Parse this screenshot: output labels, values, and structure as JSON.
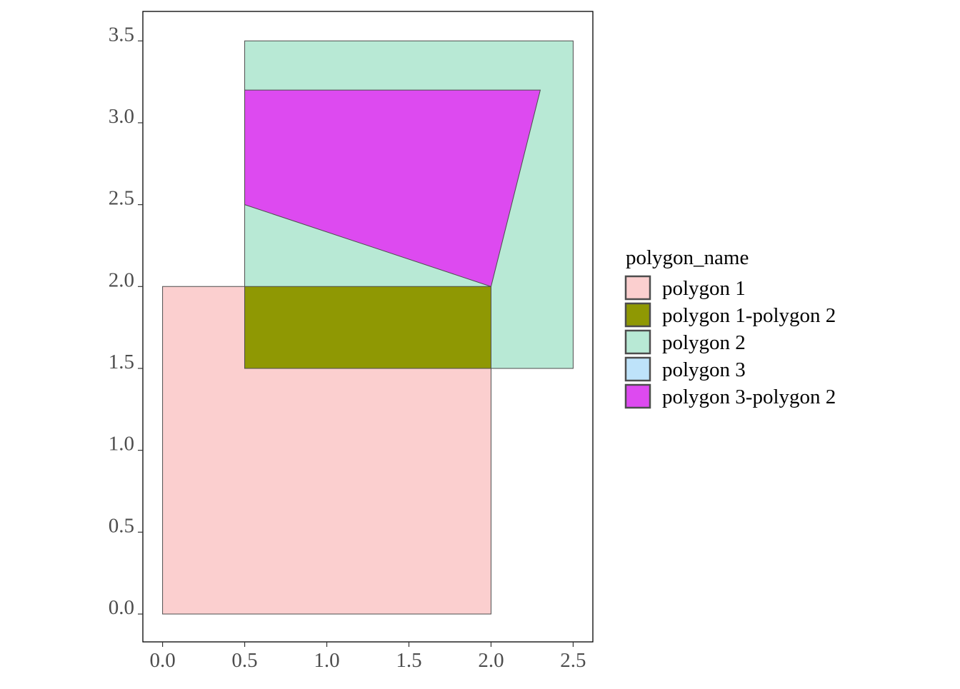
{
  "chart_data": {
    "type": "polygon-map",
    "title": "",
    "xlabel": "",
    "ylabel": "",
    "xlim": [
      -0.12,
      2.62
    ],
    "ylim": [
      -0.17,
      3.68
    ],
    "grid": false,
    "x_ticks": [
      0.0,
      0.5,
      1.0,
      1.5,
      2.0,
      2.5
    ],
    "x_tick_labels": [
      "0.0",
      "0.5",
      "1.0",
      "1.5",
      "2.0",
      "2.5"
    ],
    "y_ticks": [
      0.0,
      0.5,
      1.0,
      1.5,
      2.0,
      2.5,
      3.0,
      3.5
    ],
    "y_tick_labels": [
      "0.0",
      "0.5",
      "1.0",
      "1.5",
      "2.0",
      "2.5",
      "3.0",
      "3.5"
    ],
    "legend": {
      "title": "polygon_name",
      "position": "right",
      "entries": [
        {
          "label": "polygon 1",
          "color": "#FBCFCF"
        },
        {
          "label": "polygon 1-polygon 2",
          "color": "#8F9803"
        },
        {
          "label": "polygon 2",
          "color": "#B8E9D5"
        },
        {
          "label": "polygon 3",
          "color": "#BEE3FA"
        },
        {
          "label": "polygon 3-polygon 2",
          "color": "#DD4AF0"
        }
      ]
    },
    "polygons": [
      {
        "name": "polygon 1",
        "color": "#FBCFCF",
        "points": [
          [
            0,
            0
          ],
          [
            2,
            0
          ],
          [
            2,
            2
          ],
          [
            0,
            2
          ]
        ]
      },
      {
        "name": "polygon 2",
        "color": "#B8E9D5",
        "points": [
          [
            0.5,
            1.5
          ],
          [
            2.5,
            1.5
          ],
          [
            2.5,
            3.5
          ],
          [
            0.5,
            3.5
          ]
        ]
      },
      {
        "name": "polygon 1-polygon 2",
        "color": "#8F9803",
        "points": [
          [
            0.5,
            1.5
          ],
          [
            2,
            1.5
          ],
          [
            2,
            2
          ],
          [
            0.5,
            2
          ]
        ]
      },
      {
        "name": "polygon 3-polygon 2",
        "color": "#DD4AF0",
        "points": [
          [
            0.5,
            2.5
          ],
          [
            2,
            2
          ],
          [
            2.3,
            3.2
          ],
          [
            0.5,
            3.2
          ]
        ]
      }
    ]
  }
}
